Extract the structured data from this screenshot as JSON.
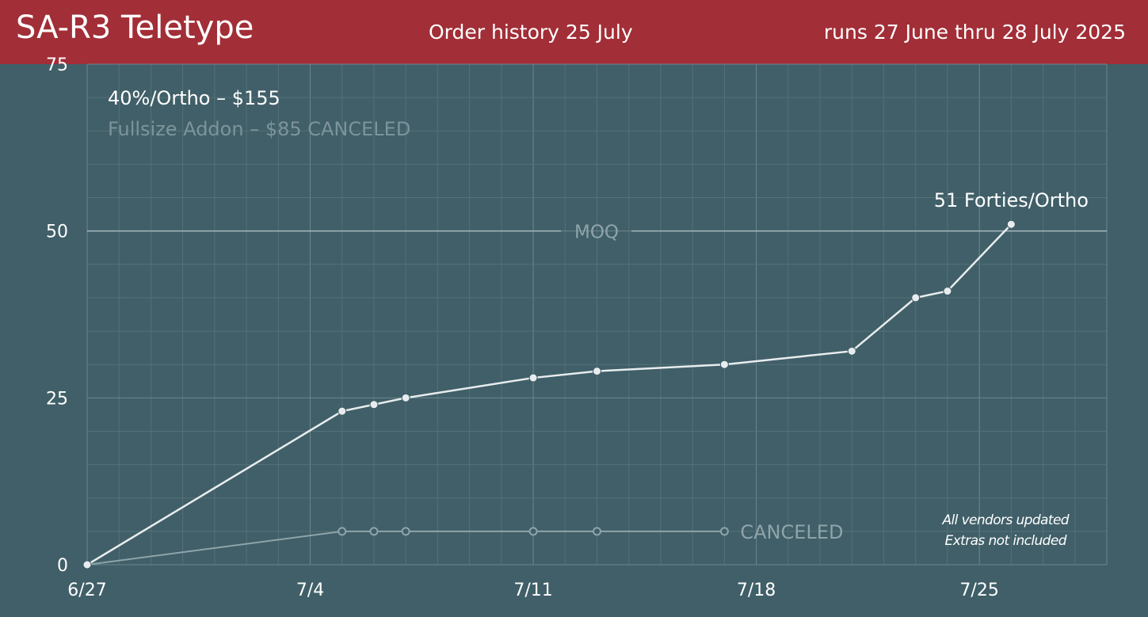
{
  "header": {
    "title": "SA-R3 Teletype",
    "subtitle": "Order history 25 July",
    "runs": "runs 27 June thru 28 July 2025"
  },
  "legend": {
    "main": "40%/Ortho – $155",
    "canceled": "Fullsize Addon – $85 CANCELED"
  },
  "note": {
    "line1": "All vendors updated",
    "line2": "Extras not included"
  },
  "colors": {
    "background": "#405f68",
    "header": "#a22e37",
    "main_series": "#e8ecee",
    "canceled_series": "#8fa4aa",
    "grid": "#5c7880"
  },
  "chart_data": {
    "type": "line",
    "title": "Order history 25 July",
    "x_axis": {
      "type": "date",
      "min": "2025-06-27",
      "max": "2025-07-29",
      "ticks": [
        {
          "date": "2025-06-27",
          "label": "6/27"
        },
        {
          "date": "2025-07-04",
          "label": "7/4"
        },
        {
          "date": "2025-07-11",
          "label": "7/11"
        },
        {
          "date": "2025-07-18",
          "label": "7/18"
        },
        {
          "date": "2025-07-25",
          "label": "7/25"
        }
      ]
    },
    "y_axis": {
      "min": 0,
      "max": 75,
      "ticks": [
        0,
        25,
        50,
        75
      ],
      "grid": true
    },
    "reference_line": {
      "y": 50,
      "label": "MOQ"
    },
    "series": [
      {
        "name": "40%/Ortho – $155",
        "style": "solid",
        "end_label": "51 Forties/Ortho",
        "points": [
          {
            "x": "2025-06-27",
            "y": 0
          },
          {
            "x": "2025-07-05",
            "y": 23
          },
          {
            "x": "2025-07-06",
            "y": 24
          },
          {
            "x": "2025-07-07",
            "y": 25
          },
          {
            "x": "2025-07-11",
            "y": 28
          },
          {
            "x": "2025-07-13",
            "y": 29
          },
          {
            "x": "2025-07-17",
            "y": 30
          },
          {
            "x": "2025-07-21",
            "y": 32
          },
          {
            "x": "2025-07-23",
            "y": 40
          },
          {
            "x": "2025-07-24",
            "y": 41
          },
          {
            "x": "2025-07-26",
            "y": 51
          }
        ]
      },
      {
        "name": "Fullsize Addon – $85 CANCELED",
        "style": "hollow",
        "end_label": "CANCELED",
        "points": [
          {
            "x": "2025-06-27",
            "y": 0
          },
          {
            "x": "2025-07-05",
            "y": 5
          },
          {
            "x": "2025-07-06",
            "y": 5
          },
          {
            "x": "2025-07-07",
            "y": 5
          },
          {
            "x": "2025-07-11",
            "y": 5
          },
          {
            "x": "2025-07-13",
            "y": 5
          },
          {
            "x": "2025-07-17",
            "y": 5
          }
        ]
      }
    ]
  }
}
